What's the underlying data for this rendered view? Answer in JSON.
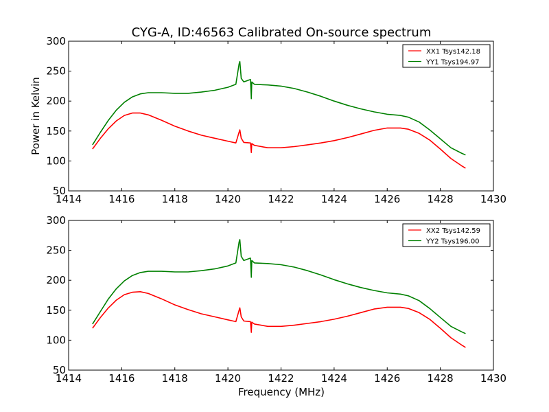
{
  "figure": {
    "title": "CYG-A, ID:46563 Calibrated On-source spectrum",
    "xlabel": "Frequency (MHz)",
    "ylabel": "Power in Kelvin"
  },
  "chart_data": [
    {
      "type": "line",
      "title": "CYG-A, ID:46563 Calibrated On-source spectrum",
      "xlabel": "",
      "ylabel": "Power in Kelvin",
      "xlim": [
        1414,
        1430
      ],
      "ylim": [
        50,
        300
      ],
      "xticks": [
        1414,
        1416,
        1418,
        1420,
        1422,
        1424,
        1426,
        1428,
        1430
      ],
      "yticks": [
        50,
        100,
        150,
        200,
        250,
        300
      ],
      "legend": "top-right",
      "grid": false,
      "series": [
        {
          "name": "XX1 Tsys142.18",
          "color": "#ff0000",
          "x": [
            1414.9,
            1415.2,
            1415.5,
            1415.8,
            1416.1,
            1416.4,
            1416.7,
            1417.0,
            1417.5,
            1418.0,
            1418.5,
            1419.0,
            1419.5,
            1420.0,
            1420.3,
            1420.42,
            1420.45,
            1420.5,
            1420.6,
            1420.85,
            1420.88,
            1420.9,
            1421.0,
            1421.5,
            1422.0,
            1422.5,
            1423.0,
            1423.5,
            1424.0,
            1424.5,
            1425.0,
            1425.5,
            1426.0,
            1426.5,
            1426.8,
            1427.2,
            1427.6,
            1428.0,
            1428.4,
            1428.8,
            1428.95
          ],
          "y": [
            120,
            138,
            154,
            167,
            176,
            180,
            180,
            177,
            168,
            158,
            150,
            143,
            138,
            133,
            130,
            148,
            152,
            138,
            131,
            130,
            114,
            129,
            126,
            122,
            122,
            124,
            127,
            130,
            134,
            139,
            145,
            151,
            155,
            155,
            153,
            146,
            135,
            120,
            104,
            92,
            88
          ]
        },
        {
          "name": "YY1 Tsys194.97",
          "color": "#008000",
          "x": [
            1414.9,
            1415.2,
            1415.5,
            1415.8,
            1416.1,
            1416.4,
            1416.7,
            1417.0,
            1417.5,
            1418.0,
            1418.5,
            1419.0,
            1419.5,
            1420.0,
            1420.3,
            1420.42,
            1420.45,
            1420.5,
            1420.6,
            1420.85,
            1420.88,
            1420.9,
            1421.0,
            1421.5,
            1422.0,
            1422.5,
            1423.0,
            1423.5,
            1424.0,
            1424.5,
            1425.0,
            1425.5,
            1426.0,
            1426.5,
            1426.8,
            1427.2,
            1427.6,
            1428.0,
            1428.4,
            1428.8,
            1428.95
          ],
          "y": [
            127,
            148,
            168,
            185,
            198,
            207,
            212,
            214,
            214,
            213,
            213,
            215,
            218,
            223,
            228,
            262,
            266,
            238,
            232,
            236,
            204,
            232,
            228,
            227,
            225,
            221,
            215,
            208,
            200,
            193,
            187,
            182,
            178,
            176,
            173,
            165,
            152,
            137,
            122,
            113,
            110
          ]
        }
      ]
    },
    {
      "type": "line",
      "title": "",
      "xlabel": "Frequency (MHz)",
      "ylabel": "",
      "xlim": [
        1414,
        1430
      ],
      "ylim": [
        50,
        300
      ],
      "xticks": [
        1414,
        1416,
        1418,
        1420,
        1422,
        1424,
        1426,
        1428,
        1430
      ],
      "yticks": [
        50,
        100,
        150,
        200,
        250,
        300
      ],
      "legend": "top-right",
      "grid": false,
      "series": [
        {
          "name": "XX2 Tsys142.59",
          "color": "#ff0000",
          "x": [
            1414.9,
            1415.2,
            1415.5,
            1415.8,
            1416.1,
            1416.4,
            1416.7,
            1417.0,
            1417.5,
            1418.0,
            1418.5,
            1419.0,
            1419.5,
            1420.0,
            1420.3,
            1420.42,
            1420.45,
            1420.5,
            1420.6,
            1420.85,
            1420.88,
            1420.9,
            1421.0,
            1421.5,
            1422.0,
            1422.5,
            1423.0,
            1423.5,
            1424.0,
            1424.5,
            1425.0,
            1425.5,
            1426.0,
            1426.5,
            1426.8,
            1427.2,
            1427.6,
            1428.0,
            1428.4,
            1428.8,
            1428.95
          ],
          "y": [
            120,
            138,
            154,
            167,
            176,
            180,
            181,
            178,
            169,
            159,
            151,
            144,
            139,
            134,
            131,
            150,
            154,
            139,
            132,
            131,
            113,
            130,
            127,
            123,
            123,
            125,
            128,
            131,
            135,
            140,
            146,
            152,
            155,
            155,
            153,
            146,
            135,
            120,
            104,
            92,
            88
          ]
        },
        {
          "name": "YY2 Tsys196.00",
          "color": "#008000",
          "x": [
            1414.9,
            1415.2,
            1415.5,
            1415.8,
            1416.1,
            1416.4,
            1416.7,
            1417.0,
            1417.5,
            1418.0,
            1418.5,
            1419.0,
            1419.5,
            1420.0,
            1420.3,
            1420.42,
            1420.45,
            1420.5,
            1420.6,
            1420.85,
            1420.88,
            1420.9,
            1421.0,
            1421.5,
            1422.0,
            1422.5,
            1423.0,
            1423.5,
            1424.0,
            1424.5,
            1425.0,
            1425.5,
            1426.0,
            1426.5,
            1426.8,
            1427.2,
            1427.6,
            1428.0,
            1428.4,
            1428.8,
            1428.95
          ],
          "y": [
            127,
            148,
            169,
            186,
            199,
            208,
            213,
            215,
            215,
            214,
            214,
            216,
            219,
            224,
            229,
            264,
            268,
            240,
            233,
            237,
            205,
            233,
            229,
            228,
            226,
            222,
            216,
            209,
            201,
            194,
            188,
            183,
            179,
            177,
            174,
            166,
            153,
            138,
            123,
            114,
            111
          ]
        }
      ]
    }
  ]
}
